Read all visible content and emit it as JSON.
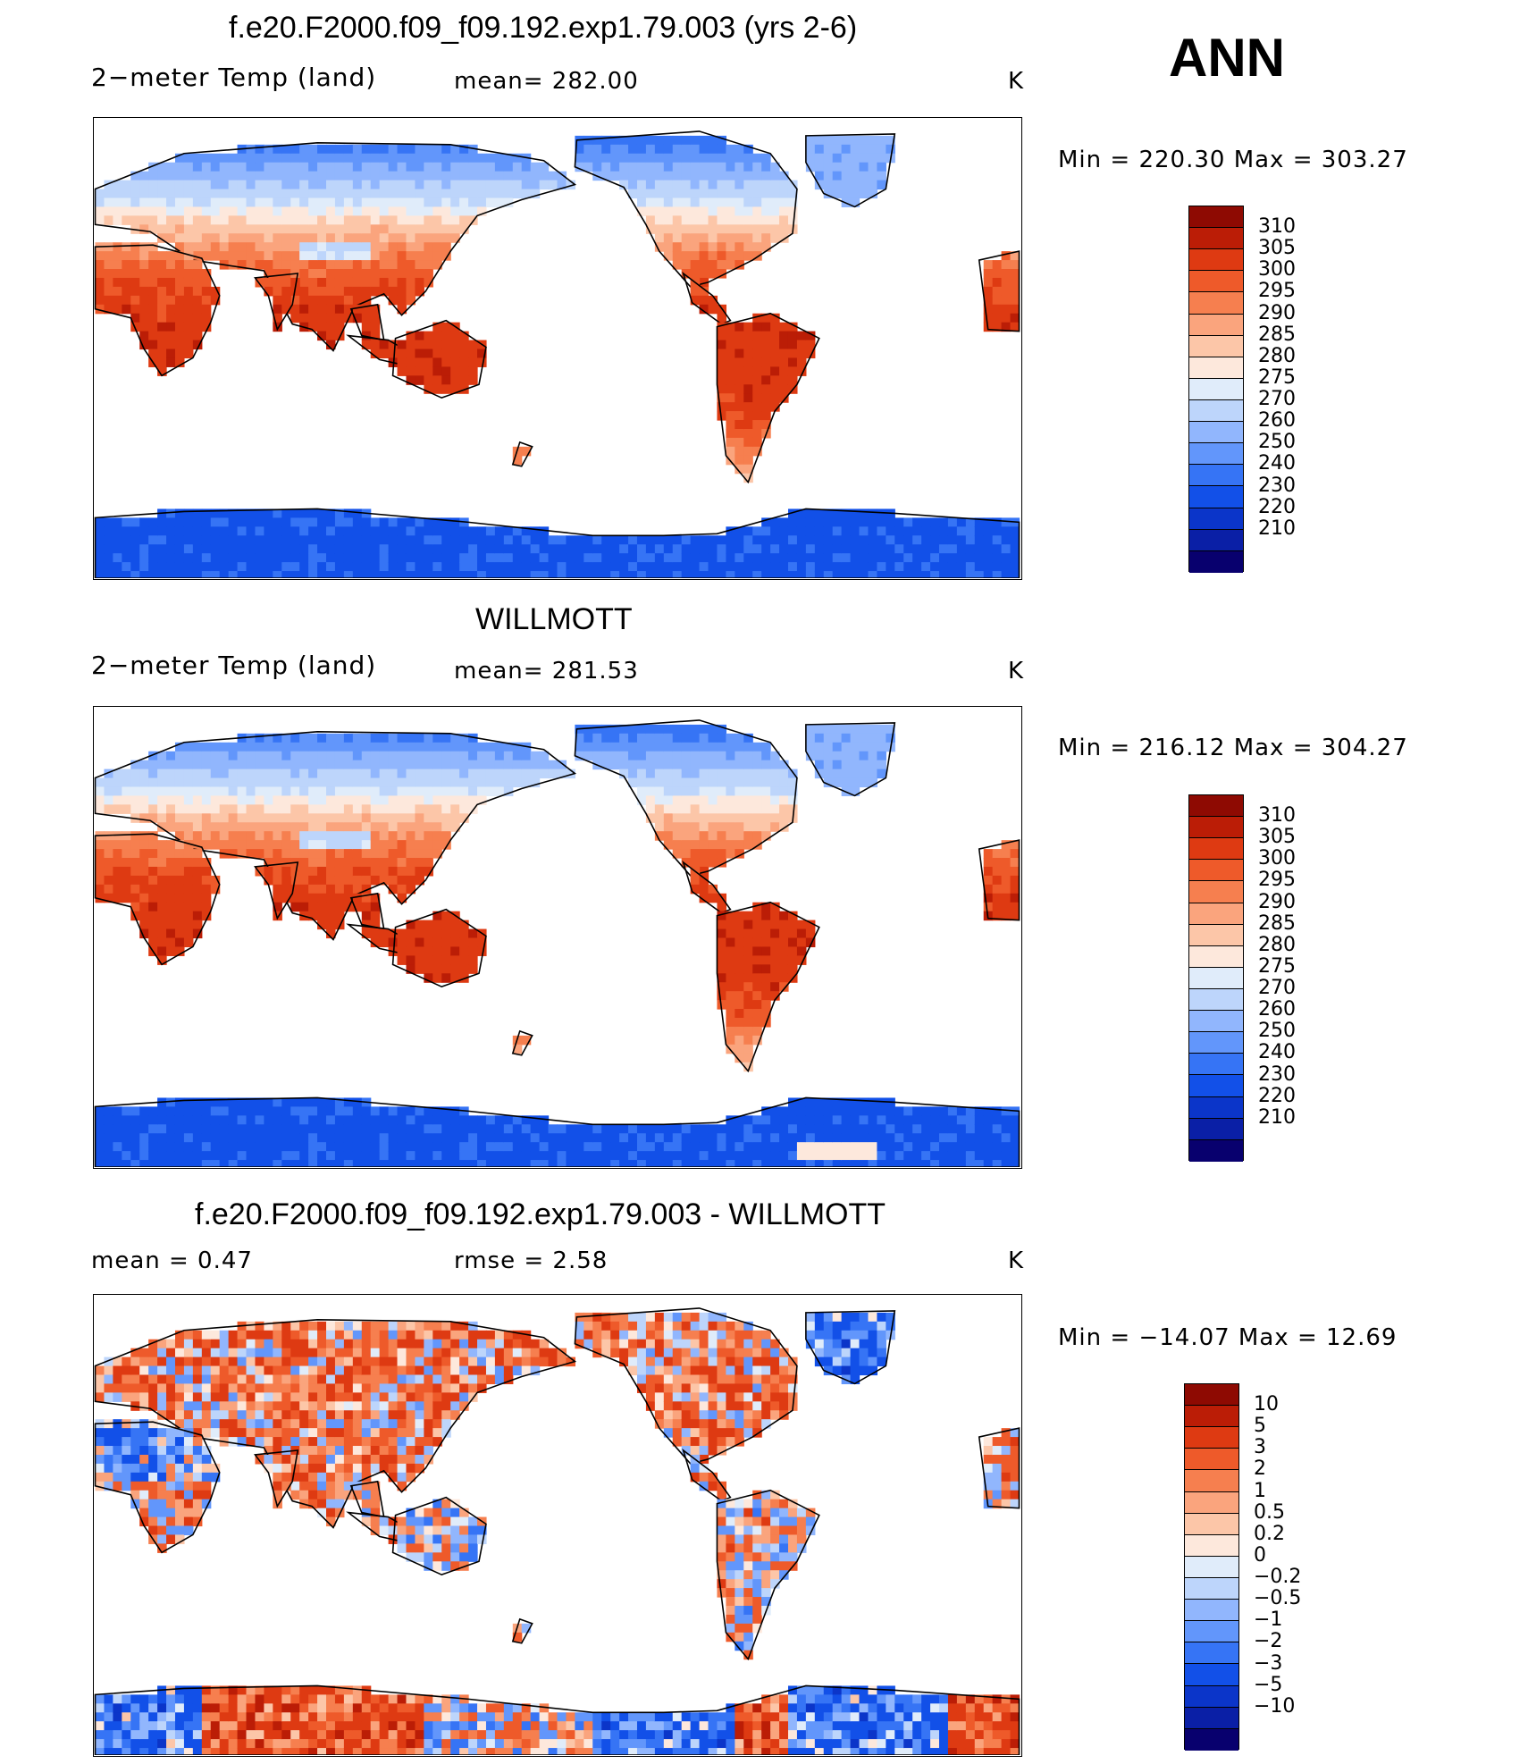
{
  "season": "ANN",
  "scale_colors": [
    "#08006e",
    "#0a1fa6",
    "#0b35c9",
    "#1250e8",
    "#3674f5",
    "#6296fb",
    "#91b6fd",
    "#bdd5fb",
    "#e0ecfa",
    "#fde8dc",
    "#fcc6a8",
    "#faa47d",
    "#f67f4f",
    "#ee5a2a",
    "#de3a12",
    "#bb1d06",
    "#8e0a02"
  ],
  "panels": [
    {
      "title": "f.e20.F2000.f09_f09.192.exp1.79.003 (yrs 2-6)",
      "variable": "2−meter Temp (land)",
      "stat1": "mean=  282.00",
      "stat2": "",
      "units": "K",
      "minmax": "Min  =  220.30  Max  =  303.27",
      "colorbar_levels": [
        "310",
        "305",
        "300",
        "295",
        "290",
        "285",
        "280",
        "275",
        "270",
        "260",
        "250",
        "240",
        "230",
        "220",
        "210"
      ],
      "field": "model"
    },
    {
      "title": "WILLMOTT",
      "variable": "2−meter Temp (land)",
      "stat1": "mean=  281.53",
      "stat2": "",
      "units": "K",
      "minmax": "Min  =  216.12  Max  =  304.27",
      "colorbar_levels": [
        "310",
        "305",
        "300",
        "295",
        "290",
        "285",
        "280",
        "275",
        "270",
        "260",
        "250",
        "240",
        "230",
        "220",
        "210"
      ],
      "field": "obs"
    },
    {
      "title": "f.e20.F2000.f09_f09.192.exp1.79.003 - WILLMOTT",
      "variable": "",
      "stat1": "mean  =      0.47",
      "stat2": "rmse  =      2.58",
      "units": "K",
      "minmax": "Min  =  −14.07  Max  =      12.69",
      "colorbar_levels": [
        "10",
        "5",
        "3",
        "2",
        "1",
        "0.5",
        "0.2",
        "0",
        "−0.2",
        "−0.5",
        "−1",
        "−2",
        "−3",
        "−5",
        "−10"
      ],
      "field": "diff"
    }
  ]
}
